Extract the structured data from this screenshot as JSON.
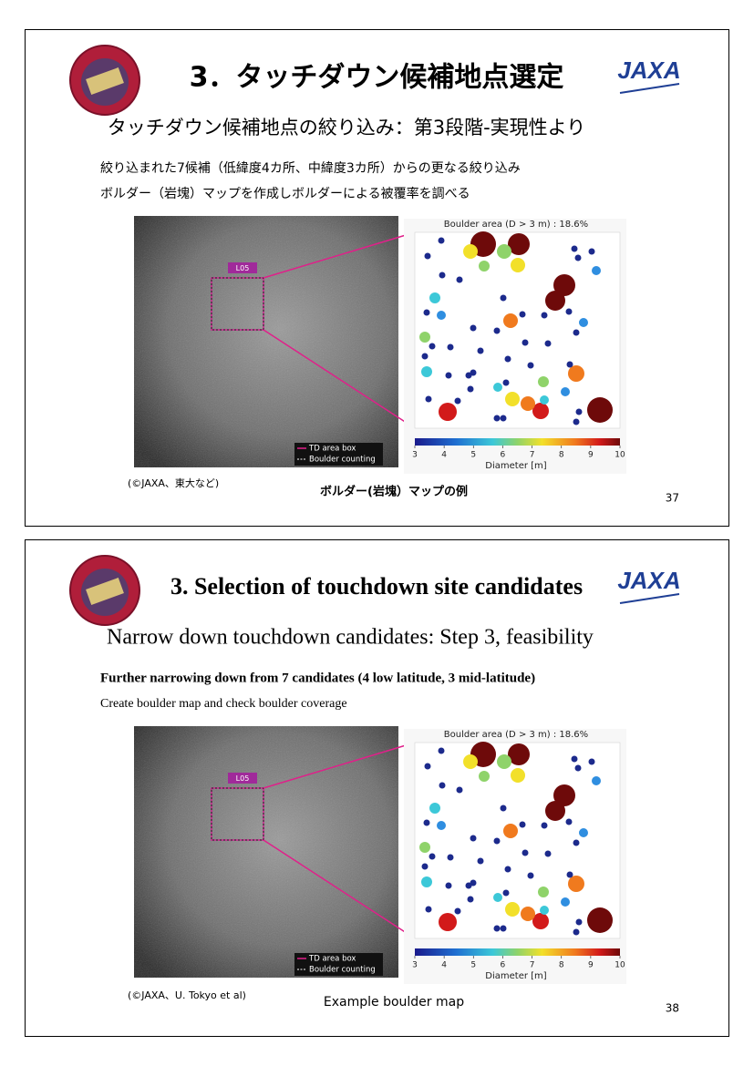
{
  "slides": [
    {
      "title": "3．タッチダウン候補地点選定",
      "jaxa_logo": "JAXA",
      "subtitle": "タッチダウン候補地点の絞り込み：第3段階-実現性より",
      "bullets": [
        "絞り込まれた7候補（低緯度4カ所、中緯度3カ所）からの更なる絞り込み",
        "ボルダー（岩塊）マップを作成しボルダーによる被覆率を調べる"
      ],
      "figure": {
        "site_label": "L05",
        "map_title": "Boulder area (D > 3 m) : 18.6%",
        "colorbar_ticks": [
          3,
          4,
          5,
          6,
          7,
          8,
          9,
          10
        ],
        "colorbar_label": "Diameter [m]",
        "legend": [
          "TD area box",
          "Boulder counting"
        ]
      },
      "credit": "(©JAXA、東大など)",
      "caption": "ボルダー(岩塊）マップの例",
      "page_number": 37
    },
    {
      "title": "3. Selection of touchdown site candidates",
      "jaxa_logo": "JAXA",
      "subtitle": "Narrow down touchdown candidates: Step 3, feasibility",
      "bullets": [
        "Further narrowing down from 7 candidates (4 low latitude, 3 mid-latitude)",
        "Create boulder map and check boulder coverage"
      ],
      "figure": {
        "site_label": "L05",
        "map_title": "Boulder area (D > 3 m) : 18.6%",
        "colorbar_ticks": [
          3,
          4,
          5,
          6,
          7,
          8,
          9,
          10
        ],
        "colorbar_label": "Diameter [m]",
        "legend": [
          "TD area box",
          "Boulder counting"
        ]
      },
      "credit": "(©JAXA、U. Tokyo et al)",
      "caption": "Example boulder map",
      "page_number": 38
    }
  ]
}
